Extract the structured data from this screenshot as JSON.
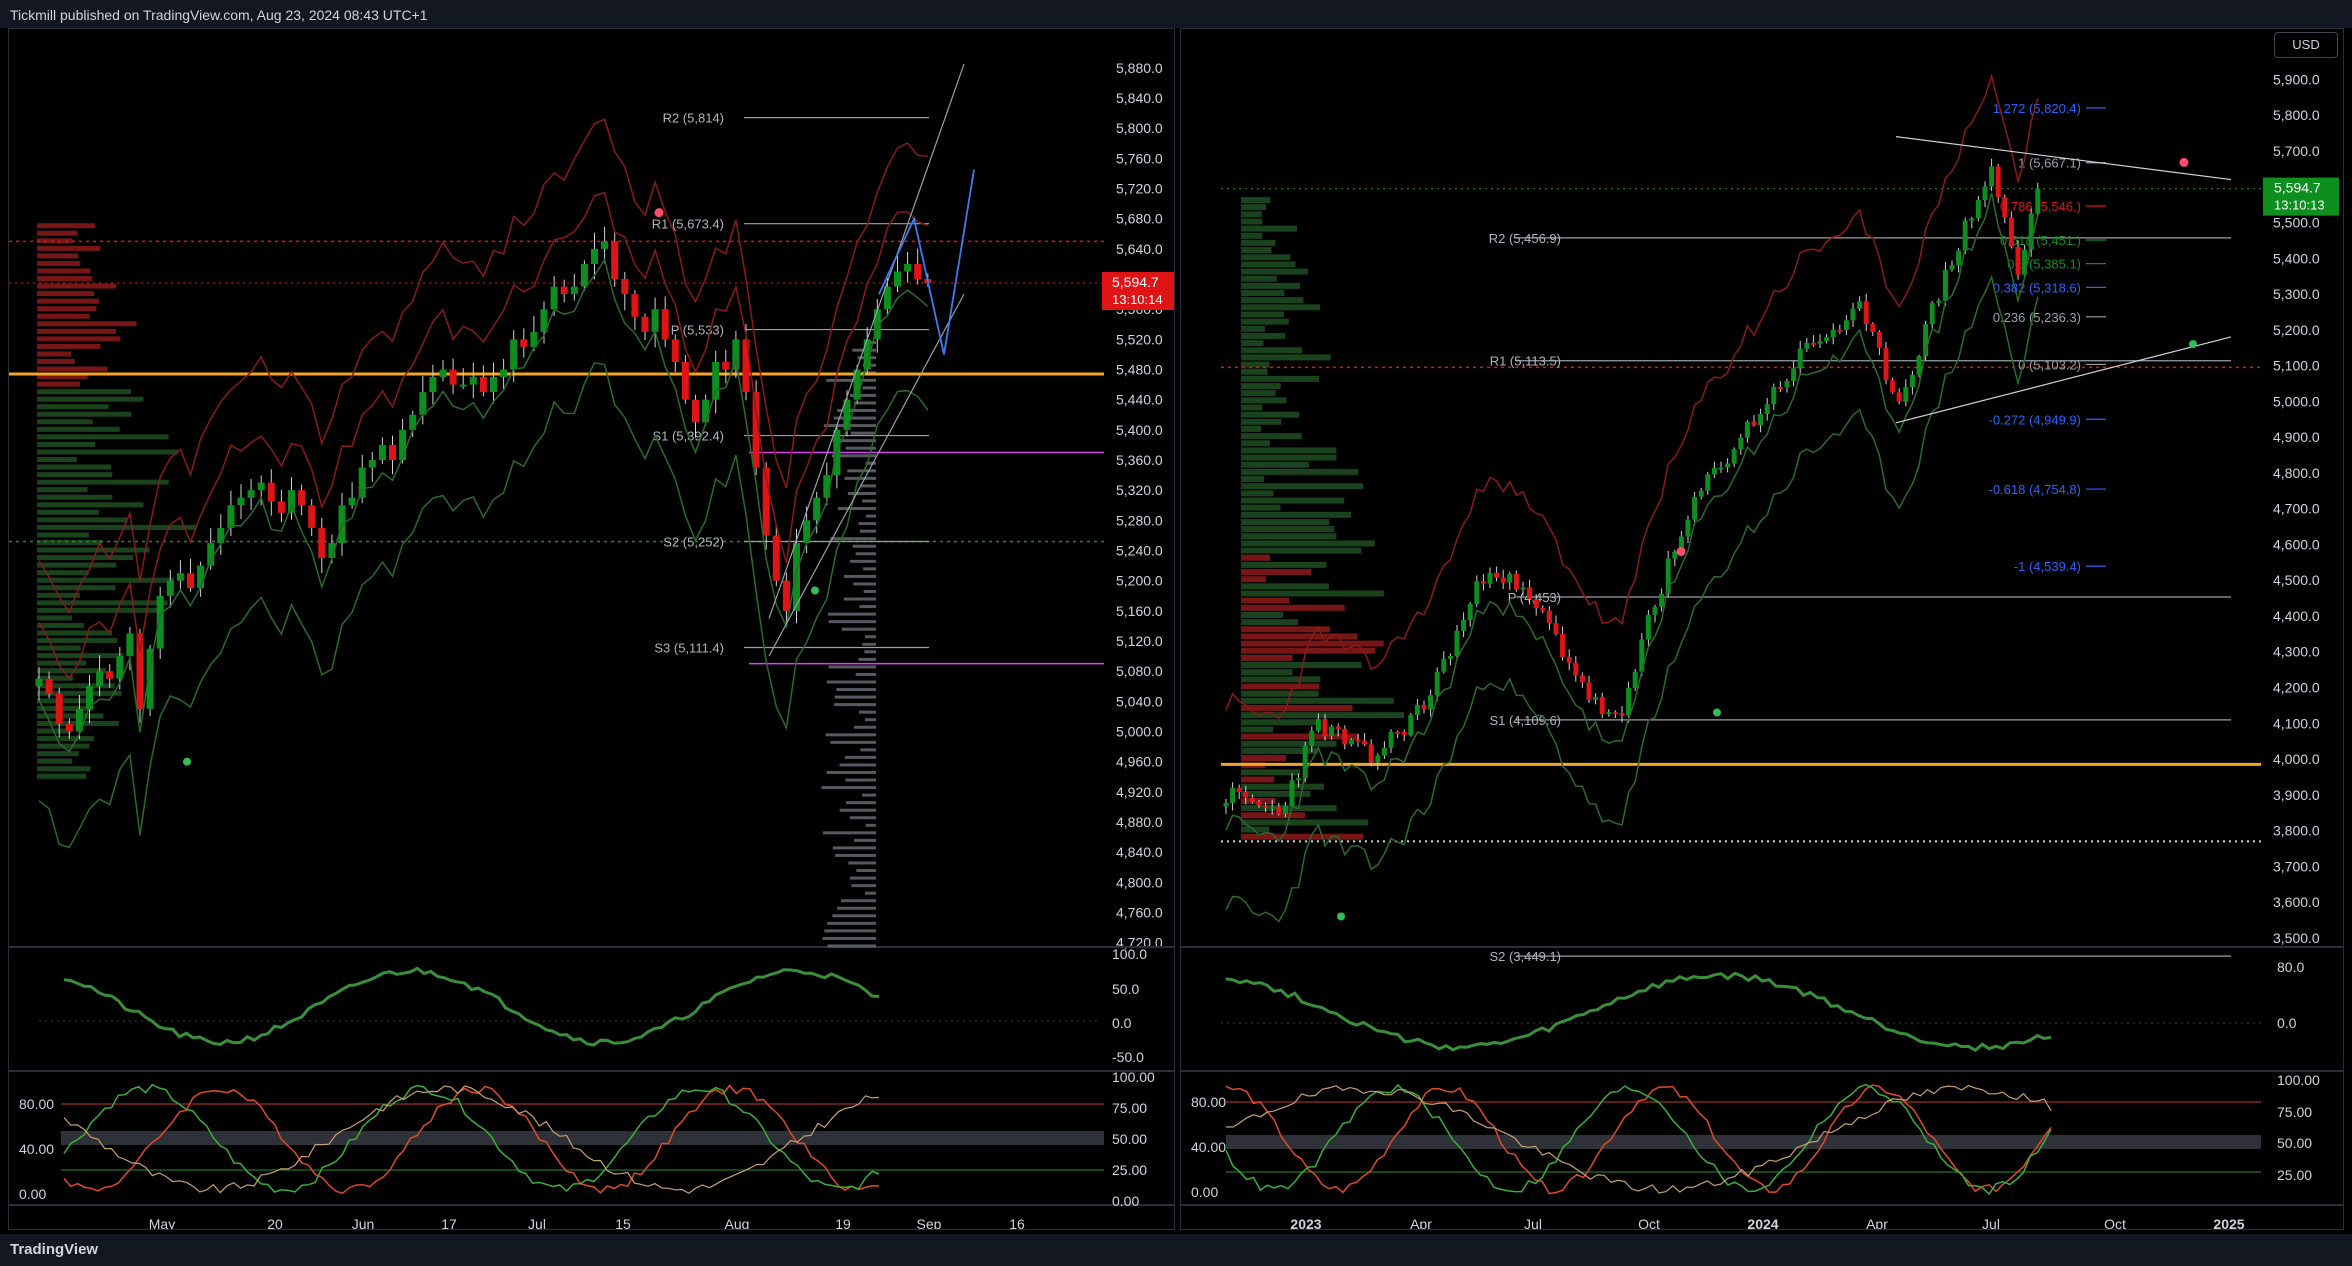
{
  "publisher": "Tickmill published on TradingView.com, Aug 23, 2024 08:43 UTC+1",
  "brand": "TradingView",
  "currency": "USD",
  "colors": {
    "up": "#0c8f1e",
    "down": "#e01414",
    "bb": "#8b1a1a",
    "sma": "#2a6b2a",
    "gold": "#f5a623",
    "magenta": "#d946ef",
    "fib_blue": "#2962ff",
    "pivot": "#9aa0a6"
  },
  "chart_data": [
    {
      "type": "candlestick",
      "name_left": "daily",
      "y_ticks": [
        5880,
        5840,
        5800,
        5760,
        5720,
        5680,
        5640,
        5600,
        5560,
        5520,
        5480,
        5440,
        5400,
        5360,
        5320,
        5280,
        5240,
        5200,
        5160,
        5120,
        5080,
        5040,
        5000,
        4960,
        4920,
        4880,
        4840,
        4800,
        4760,
        4720
      ],
      "y_tick_labels": [
        "5,880.0",
        "5,840.0",
        "5,800.0",
        "5,760.0",
        "5,720.0",
        "5,680.0",
        "5,640.0",
        "5,600.0",
        "5,560.0",
        "5,520.0",
        "5,480.0",
        "5,440.0",
        "5,400.0",
        "5,360.0",
        "5,320.0",
        "5,280.0",
        "5,240.0",
        "5,200.0",
        "5,160.0",
        "5,120.0",
        "5,080.0",
        "5,040.0",
        "5,000.0",
        "4,960.0",
        "4,920.0",
        "4,880.0",
        "4,840.0",
        "4,800.0",
        "4,760.0",
        "4,720.0"
      ],
      "ylim": [
        4705,
        5905
      ],
      "x_labels": [
        "May",
        "20",
        "Jun",
        "17",
        "Jul",
        "15",
        "Aug",
        "19",
        "Sep",
        "16"
      ],
      "last_price": "5,594.7",
      "countdown": "13:10:14",
      "closes": [
        5070,
        5050,
        5010,
        5000,
        5030,
        5060,
        5080,
        5070,
        5100,
        5130,
        5030,
        5110,
        5180,
        5200,
        5210,
        5190,
        5220,
        5250,
        5270,
        5300,
        5310,
        5320,
        5330,
        5305,
        5290,
        5320,
        5300,
        5270,
        5230,
        5250,
        5300,
        5310,
        5350,
        5360,
        5380,
        5360,
        5400,
        5420,
        5450,
        5470,
        5480,
        5460,
        5460,
        5470,
        5450,
        5470,
        5480,
        5520,
        5510,
        5530,
        5560,
        5590,
        5580,
        5590,
        5620,
        5640,
        5650,
        5600,
        5580,
        5550,
        5530,
        5560,
        5520,
        5490,
        5440,
        5410,
        5440,
        5490,
        5480,
        5520,
        5450,
        5350,
        5260,
        5200,
        5160,
        5250,
        5280,
        5310,
        5340,
        5400,
        5440,
        5480,
        5520,
        5560,
        5590,
        5610,
        5620,
        5600,
        5594.7
      ],
      "pivots": [
        {
          "label": "R2 (5,814)",
          "value": 5814
        },
        {
          "label": "R1 (5,673.4)",
          "value": 5673.4
        },
        {
          "label": "P (5,533)",
          "value": 5533
        },
        {
          "label": "S1 (5,392.4)",
          "value": 5392.4
        },
        {
          "label": "S2 (5,252)",
          "value": 5252
        },
        {
          "label": "S3 (5,111.4)",
          "value": 5111.4
        }
      ],
      "rsi_ticks": [
        "100.0",
        "50.0",
        "0.0",
        "-50.0"
      ],
      "stoch_ticks": [
        "100.00",
        "75.00",
        "50.00",
        "25.00",
        "0.00"
      ],
      "stoch_left_ticks": [
        "80.00",
        "40.00",
        "0.00"
      ]
    },
    {
      "type": "candlestick",
      "name_right": "weekly",
      "y_ticks": [
        5900,
        5800,
        5700,
        5600,
        5500,
        5400,
        5300,
        5200,
        5100,
        5000,
        4900,
        4800,
        4700,
        4600,
        4500,
        4400,
        4300,
        4200,
        4100,
        4000,
        3900,
        3800,
        3700,
        3600,
        3500
      ],
      "y_tick_labels": [
        "5,900.0",
        "5,800.0",
        "5,700.0",
        "5,600.0",
        "5,500.0",
        "5,400.0",
        "5,300.0",
        "5,200.0",
        "5,100.0",
        "5,000.0",
        "4,900.0",
        "4,800.0",
        "4,700.0",
        "4,600.0",
        "4,500.0",
        "4,400.0",
        "4,300.0",
        "4,200.0",
        "4,100.0",
        "4,000.0",
        "3,900.0",
        "3,800.0",
        "3,700.0",
        "3,600.0",
        "3,500.0"
      ],
      "ylim": [
        3455,
        5985
      ],
      "x_labels": [
        "2023",
        "Apr",
        "Jul",
        "Oct",
        "2024",
        "Apr",
        "Jul",
        "Oct",
        "2025"
      ],
      "last_price": "5,594.7",
      "countdown": "13:10:13",
      "pivots": [
        {
          "label": "R2 (5,456.9)",
          "value": 5456.9
        },
        {
          "label": "R1 (5,113.5)",
          "value": 5113.5
        },
        {
          "label": "P (4,453)",
          "value": 4453
        },
        {
          "label": "S1 (4,109.6)",
          "value": 4109.6
        },
        {
          "label": "S2 (3,449.1)",
          "value": 3449.1
        }
      ],
      "fibs": [
        {
          "label": "1.272 (5,820.4)",
          "value": 5820.4,
          "color": "#2962ff"
        },
        {
          "label": "1 (5,667.1)",
          "value": 5667.1,
          "color": "#9aa0a6"
        },
        {
          "label": "0.786 (5,546.)",
          "value": 5546,
          "color": "#e01414"
        },
        {
          "label": "0.618 (5,451.)",
          "value": 5451,
          "color": "#0c8f1e"
        },
        {
          "label": "0.5 (5,385.1)",
          "value": 5385.1,
          "color": "#0c8f1e"
        },
        {
          "label": "0.382 (5,318.6)",
          "value": 5318.6,
          "color": "#2962ff"
        },
        {
          "label": "0.236 (5,236.3)",
          "value": 5236.3,
          "color": "#9aa0a6"
        },
        {
          "label": "0 (5,103.2)",
          "value": 5103.2,
          "color": "#9aa0a6"
        },
        {
          "label": "-0.272 (4,949.9)",
          "value": 4949.9,
          "color": "#2962ff"
        },
        {
          "label": "-0.618 (4,754.8)",
          "value": 4754.8,
          "color": "#2962ff"
        },
        {
          "label": "-1 (4,539.4)",
          "value": 4539.4,
          "color": "#2962ff"
        }
      ],
      "rsi_ticks": [
        "80.0",
        "0.0"
      ],
      "stoch_ticks": [
        "100.00",
        "75.00",
        "50.00",
        "25.00"
      ],
      "stoch_left_ticks": [
        "80.00",
        "40.00",
        "0.00"
      ]
    }
  ]
}
